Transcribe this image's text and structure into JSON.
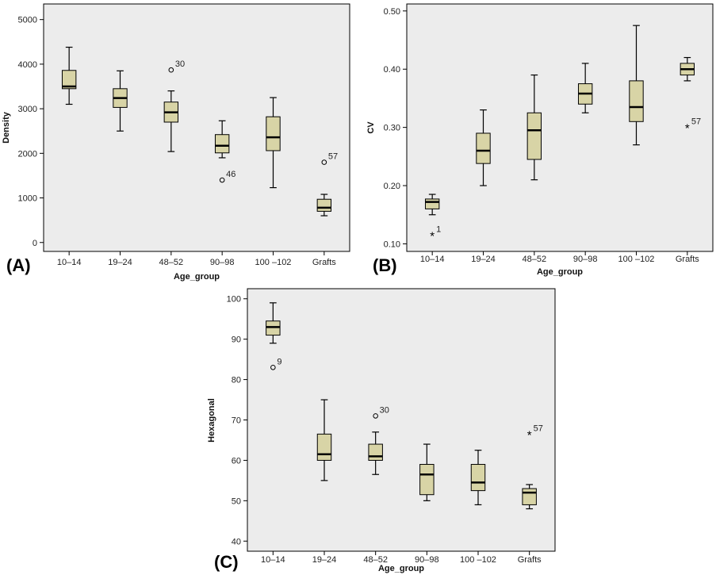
{
  "colors": {
    "plot_background": "#ececec",
    "box_fill": "#d8d4a6",
    "stroke": "#000000"
  },
  "chart_data": [
    {
      "type": "boxplot",
      "panel_label": "(A)",
      "xlabel": "Age_group",
      "ylabel": "Density",
      "ylim": [
        -200,
        5350
      ],
      "yticks": [
        0,
        1000,
        2000,
        3000,
        4000,
        5000
      ],
      "categories": [
        "10–14",
        "19–24",
        "48–52",
        "90–98",
        "100 –102",
        "Grafts"
      ],
      "boxes": [
        {
          "min": 3100,
          "q1": 3450,
          "median": 3500,
          "q3": 3860,
          "max": 4380
        },
        {
          "min": 2500,
          "q1": 3030,
          "median": 3240,
          "q3": 3450,
          "max": 3850
        },
        {
          "min": 2040,
          "q1": 2700,
          "median": 2920,
          "q3": 3150,
          "max": 3400
        },
        {
          "min": 1900,
          "q1": 2010,
          "median": 2170,
          "q3": 2420,
          "max": 2730
        },
        {
          "min": 1230,
          "q1": 2060,
          "median": 2360,
          "q3": 2820,
          "max": 3250
        },
        {
          "min": 600,
          "q1": 700,
          "median": 780,
          "q3": 970,
          "max": 1080
        }
      ],
      "outliers": [
        {
          "category": "48–52",
          "value": 3870,
          "label": "30",
          "marker": "circle"
        },
        {
          "category": "90–98",
          "value": 1400,
          "label": "46",
          "marker": "circle"
        },
        {
          "category": "Grafts",
          "value": 1800,
          "label": "57",
          "marker": "circle"
        }
      ]
    },
    {
      "type": "boxplot",
      "panel_label": "(B)",
      "xlabel": "Age_group",
      "ylabel": "CV",
      "ylim": [
        0.087,
        0.512
      ],
      "yticks": [
        0.1,
        0.2,
        0.3,
        0.4,
        0.5
      ],
      "ytick_labels": [
        "0.10",
        "0.20",
        "0.30",
        "0.40",
        "0.50"
      ],
      "categories": [
        "10–14",
        "19–24",
        "48–52",
        "90–98",
        "100 –102",
        "Grafts"
      ],
      "boxes": [
        {
          "min": 0.15,
          "q1": 0.16,
          "median": 0.172,
          "q3": 0.177,
          "max": 0.185
        },
        {
          "min": 0.2,
          "q1": 0.238,
          "median": 0.26,
          "q3": 0.29,
          "max": 0.33
        },
        {
          "min": 0.21,
          "q1": 0.245,
          "median": 0.295,
          "q3": 0.325,
          "max": 0.39
        },
        {
          "min": 0.325,
          "q1": 0.34,
          "median": 0.358,
          "q3": 0.375,
          "max": 0.41
        },
        {
          "min": 0.27,
          "q1": 0.31,
          "median": 0.335,
          "q3": 0.38,
          "max": 0.475
        },
        {
          "min": 0.38,
          "q1": 0.39,
          "median": 0.4,
          "q3": 0.41,
          "max": 0.42
        }
      ],
      "outliers": [
        {
          "category": "10–14",
          "value": 0.115,
          "label": "1",
          "marker": "star"
        },
        {
          "category": "Grafts",
          "value": 0.3,
          "label": "57",
          "marker": "star"
        }
      ]
    },
    {
      "type": "boxplot",
      "panel_label": "(C)",
      "xlabel": "Age_group",
      "ylabel": "Hexagonal",
      "ylim": [
        37.5,
        102.5
      ],
      "yticks": [
        40,
        50,
        60,
        70,
        80,
        90,
        100
      ],
      "categories": [
        "10–14",
        "19–24",
        "48–52",
        "90–98",
        "100 –102",
        "Grafts"
      ],
      "boxes": [
        {
          "min": 89,
          "q1": 91,
          "median": 93,
          "q3": 94.5,
          "max": 99
        },
        {
          "min": 55,
          "q1": 60,
          "median": 61.5,
          "q3": 66.5,
          "max": 75
        },
        {
          "min": 56.5,
          "q1": 60,
          "median": 61,
          "q3": 64,
          "max": 67
        },
        {
          "min": 50,
          "q1": 51.5,
          "median": 56.5,
          "q3": 59,
          "max": 64
        },
        {
          "min": 49,
          "q1": 52.5,
          "median": 54.5,
          "q3": 59,
          "max": 62.5
        },
        {
          "min": 48,
          "q1": 49,
          "median": 52,
          "q3": 53,
          "max": 54
        }
      ],
      "outliers": [
        {
          "category": "10–14",
          "value": 83,
          "label": "9",
          "marker": "circle"
        },
        {
          "category": "48–52",
          "value": 71,
          "label": "30",
          "marker": "circle"
        },
        {
          "category": "Grafts",
          "value": 66.5,
          "label": "57",
          "marker": "star"
        }
      ]
    }
  ]
}
